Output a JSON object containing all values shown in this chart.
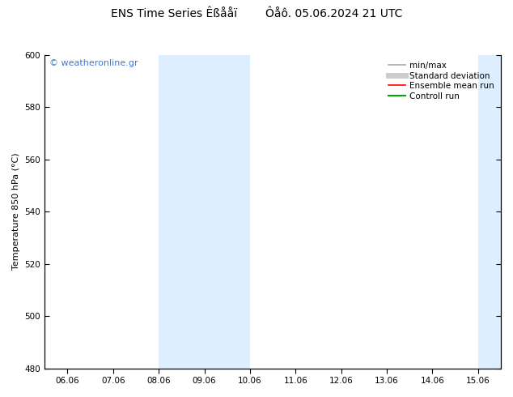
{
  "title": "ENS Time Series Êßååï        Ôåô. 05.06.2024 21 UTC",
  "ylabel": "Temperature 850 hPa (°C)",
  "ylim": [
    480,
    600
  ],
  "yticks": [
    480,
    500,
    520,
    540,
    560,
    580,
    600
  ],
  "x_labels": [
    "06.06",
    "07.06",
    "08.06",
    "09.06",
    "10.06",
    "11.06",
    "12.06",
    "13.06",
    "14.06",
    "15.06"
  ],
  "x_values": [
    0,
    1,
    2,
    3,
    4,
    5,
    6,
    7,
    8,
    9
  ],
  "xlim": [
    -0.5,
    9.5
  ],
  "shaded_bands": [
    {
      "x_start": 2,
      "x_end": 4,
      "color": "#ddeeff"
    },
    {
      "x_start": 9,
      "x_end": 9.5,
      "color": "#ddeeff"
    }
  ],
  "watermark": "© weatheronline.gr",
  "watermark_color": "#4477cc",
  "background_color": "#ffffff",
  "plot_bg_color": "#ffffff",
  "legend_items": [
    {
      "label": "min/max",
      "color": "#aaaaaa",
      "lw": 1.2
    },
    {
      "label": "Standard deviation",
      "color": "#cccccc",
      "lw": 5
    },
    {
      "label": "Ensemble mean run",
      "color": "#ff0000",
      "lw": 1.2
    },
    {
      "label": "Controll run",
      "color": "#00aa00",
      "lw": 1.5
    }
  ],
  "title_fontsize": 10,
  "tick_fontsize": 7.5,
  "ylabel_fontsize": 8,
  "legend_fontsize": 7.5
}
